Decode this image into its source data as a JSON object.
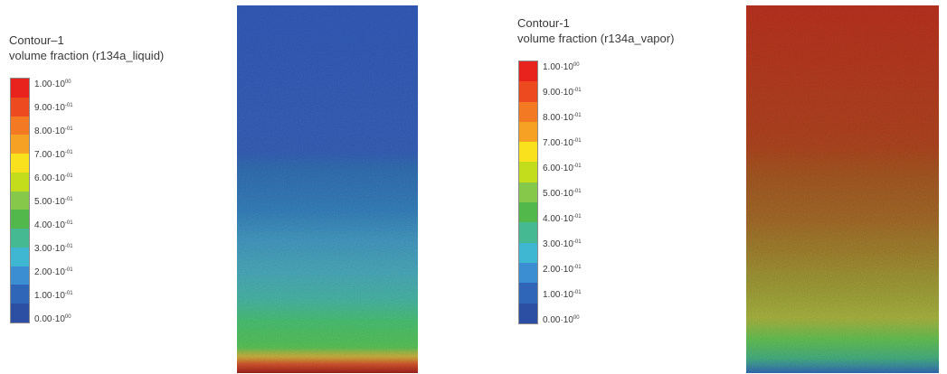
{
  "colormap": [
    "#e8231e",
    "#ee4a1f",
    "#f37a22",
    "#f7a124",
    "#f9e21d",
    "#c3dd1c",
    "#86c94a",
    "#53b84c",
    "#44b992",
    "#3fb7d2",
    "#3b8ed1",
    "#2f66b8",
    "#2c4fa3"
  ],
  "panels": [
    {
      "legend_title_line1": "Contour–1",
      "legend_title_line2": "volume fraction (r134a_liquid)",
      "ticks": [
        {
          "mantissa": "1.00·10",
          "exp": "00"
        },
        {
          "mantissa": "9.00·10",
          "exp": "-01"
        },
        {
          "mantissa": "8.00·10",
          "exp": "-01"
        },
        {
          "mantissa": "7.00·10",
          "exp": "-01"
        },
        {
          "mantissa": "6.00·10",
          "exp": "-01"
        },
        {
          "mantissa": "5.00·10",
          "exp": "-01"
        },
        {
          "mantissa": "4.00·10",
          "exp": "-01"
        },
        {
          "mantissa": "3.00·10",
          "exp": "-01"
        },
        {
          "mantissa": "2.00·10",
          "exp": "-01"
        },
        {
          "mantissa": "1.00·10",
          "exp": "-01"
        },
        {
          "mantissa": "0.00·10",
          "exp": "00"
        }
      ]
    },
    {
      "legend_title_line1": "Contour-1",
      "legend_title_line2": "volume fraction (r134a_vapor)",
      "ticks": [
        {
          "mantissa": "1.00·10",
          "exp": "00"
        },
        {
          "mantissa": "9.00·10",
          "exp": "-01"
        },
        {
          "mantissa": "8.00·10",
          "exp": "-01"
        },
        {
          "mantissa": "7.00·10",
          "exp": "-01"
        },
        {
          "mantissa": "6.00·10",
          "exp": "-01"
        },
        {
          "mantissa": "5.00·10",
          "exp": "-01"
        },
        {
          "mantissa": "4.00·10",
          "exp": "-01"
        },
        {
          "mantissa": "3.00·10",
          "exp": "-01"
        },
        {
          "mantissa": "2.00·10",
          "exp": "-01"
        },
        {
          "mantissa": "1.00·10",
          "exp": "-01"
        },
        {
          "mantissa": "0.00·10",
          "exp": "00"
        }
      ]
    }
  ]
}
